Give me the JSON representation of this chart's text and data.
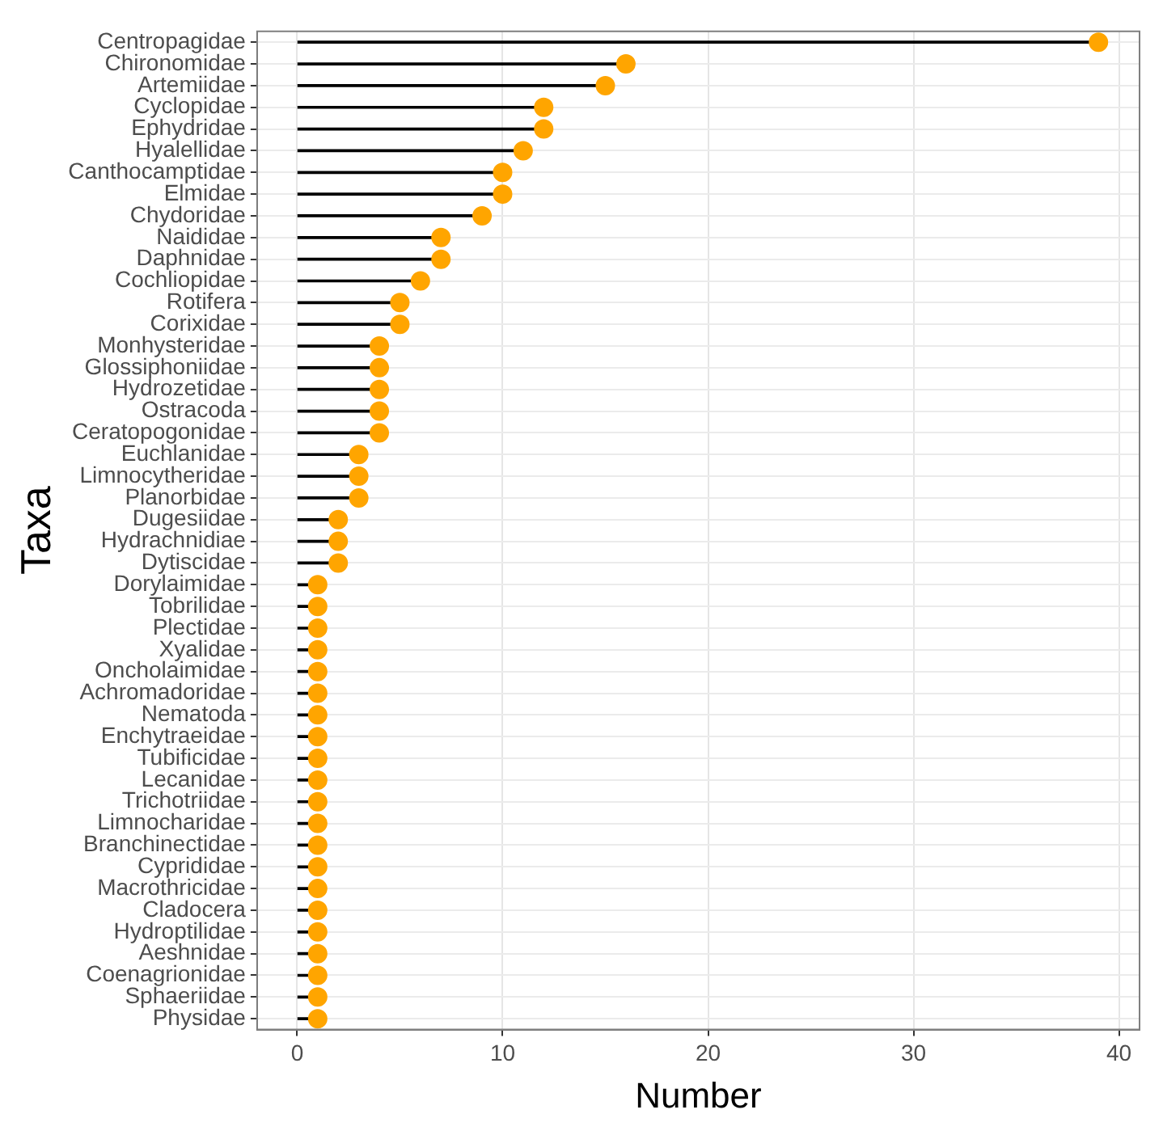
{
  "chart_data": {
    "type": "lollipop",
    "orientation": "horizontal",
    "xlabel": "Number",
    "ylabel": "Taxa",
    "categories": [
      "Centropagidae",
      "Chironomidae",
      "Artemiidae",
      "Cyclopidae",
      "Ephydridae",
      "Hyalellidae",
      "Canthocamptidae",
      "Elmidae",
      "Chydoridae",
      "Naididae",
      "Daphnidae",
      "Cochliopidae",
      "Rotifera",
      "Corixidae",
      "Monhysteridae",
      "Glossiphoniidae",
      "Hydrozetidae",
      "Ostracoda",
      "Ceratopogonidae",
      "Euchlanidae",
      "Limnocytheridae",
      "Planorbidae",
      "Dugesiidae",
      "Hydrachnidiae",
      "Dytiscidae",
      "Dorylaimidae",
      "Tobrilidae",
      "Plectidae",
      "Xyalidae",
      "Oncholaimidae",
      "Achromadoridae",
      "Nematoda",
      "Enchytraeidae",
      "Tubificidae",
      "Lecanidae",
      "Trichotriidae",
      "Limnocharidae",
      "Branchinectidae",
      "Cyprididae",
      "Macrothricidae",
      "Cladocera",
      "Hydroptilidae",
      "Aeshnidae",
      "Coenagrionidae",
      "Sphaeriidae",
      "Physidae"
    ],
    "series": [
      {
        "color": "#ffa500",
        "values": [
          39,
          16,
          15,
          12,
          12,
          11,
          10,
          10,
          9,
          7,
          7,
          6,
          5,
          5,
          4,
          4,
          4,
          4,
          4,
          3,
          3,
          3,
          2,
          2,
          2,
          1,
          1,
          1,
          1,
          1,
          1,
          1,
          1,
          1,
          1,
          1,
          1,
          1,
          1,
          1,
          1,
          1,
          1,
          1,
          1,
          1
        ]
      }
    ],
    "xlim": [
      -1.95,
      41
    ],
    "xticks": [
      0,
      10,
      20,
      30,
      40
    ],
    "grid": true,
    "legend": false,
    "marker": "circle"
  }
}
